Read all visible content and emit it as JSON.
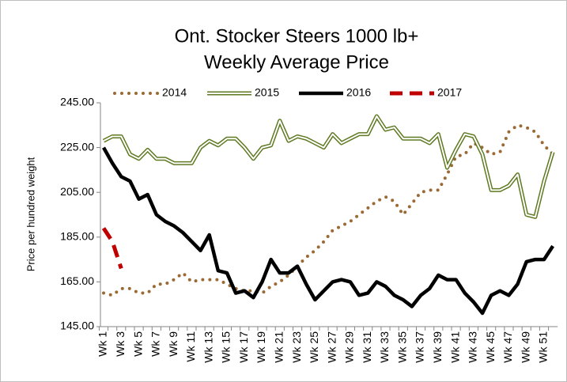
{
  "chart_data": {
    "type": "line",
    "title": "Ont. Stocker Steers 1000 lb+",
    "subtitle": "Weekly Average Price",
    "y_label": "Price per hundred weight",
    "categories": [
      "Wk 1",
      null,
      "Wk 3",
      null,
      "Wk 5",
      null,
      "Wk 7",
      null,
      "Wk 9",
      null,
      "Wk 11",
      null,
      "Wk 13",
      null,
      "Wk 15",
      null,
      "Wk 17",
      null,
      "Wk 19",
      null,
      "Wk 21",
      null,
      "Wk 23",
      null,
      "Wk 25",
      null,
      "Wk 27",
      null,
      "Wk 29",
      null,
      "Wk 31",
      null,
      "Wk 33",
      null,
      "Wk 35",
      null,
      "Wk 37",
      null,
      "Wk 39",
      null,
      "Wk 41",
      null,
      "Wk 43",
      null,
      "Wk 45",
      null,
      "Wk 47",
      null,
      "Wk 49",
      null,
      "Wk 51",
      null
    ],
    "ylim": [
      145,
      245
    ],
    "yticks": [
      {
        "value": 145,
        "label": "145.00"
      },
      {
        "value": 165,
        "label": "165.00"
      },
      {
        "value": 185,
        "label": "185.00"
      },
      {
        "value": 205,
        "label": "205.00"
      },
      {
        "value": 225,
        "label": "225.00"
      },
      {
        "value": 245,
        "label": "245.00"
      }
    ],
    "grid": false,
    "legend": "top",
    "series": [
      {
        "name": "2014",
        "color": "#9b6a34",
        "style": "dotted",
        "values": [
          160,
          159,
          162,
          162,
          160,
          160,
          164,
          164,
          166,
          169,
          165,
          166,
          166,
          166,
          164,
          162,
          161,
          161,
          160,
          163,
          165,
          168,
          172,
          176,
          179,
          183,
          188,
          190,
          192,
          195,
          198,
          201,
          203,
          201,
          195,
          200,
          205,
          206,
          206,
          213,
          221,
          222,
          227,
          225,
          222,
          223,
          232,
          235,
          234,
          232,
          226,
          222
        ]
      },
      {
        "name": "2015",
        "color": "#5f7a22",
        "style": "double",
        "values": [
          228,
          230,
          230,
          222,
          220,
          224,
          220,
          220,
          218,
          218,
          218,
          225,
          228,
          226,
          229,
          229,
          225,
          220,
          225,
          226,
          237,
          228,
          230,
          229,
          227,
          225,
          231,
          227,
          229,
          231,
          231,
          239,
          233,
          234,
          229,
          229,
          229,
          227,
          231,
          216,
          224,
          231,
          230,
          222,
          206,
          206,
          208,
          213,
          195,
          194,
          210,
          223
        ]
      },
      {
        "name": "2016",
        "color": "#000000",
        "style": "solid",
        "values": [
          225,
          218,
          212,
          210,
          202,
          204,
          195,
          192,
          190,
          187,
          183,
          179,
          186,
          170,
          169,
          160,
          161,
          158,
          165,
          175,
          169,
          169,
          172,
          164,
          157,
          161,
          165,
          166,
          165,
          159,
          160,
          165,
          163,
          159,
          157,
          154,
          159,
          162,
          168,
          166,
          166,
          160,
          156,
          151,
          159,
          161,
          159,
          164,
          174,
          175,
          175,
          181
        ]
      },
      {
        "name": "2017",
        "color": "#c00000",
        "style": "dashed",
        "values": [
          189,
          183,
          171,
          null,
          null,
          null,
          null,
          null,
          null,
          null,
          null,
          null,
          null,
          null,
          null,
          null,
          null,
          null,
          null,
          null,
          null,
          null,
          null,
          null,
          null,
          null,
          null,
          null,
          null,
          null,
          null,
          null,
          null,
          null,
          null,
          null,
          null,
          null,
          null,
          null,
          null,
          null,
          null,
          null,
          null,
          null,
          null,
          null,
          null,
          null,
          null,
          null
        ]
      }
    ]
  }
}
